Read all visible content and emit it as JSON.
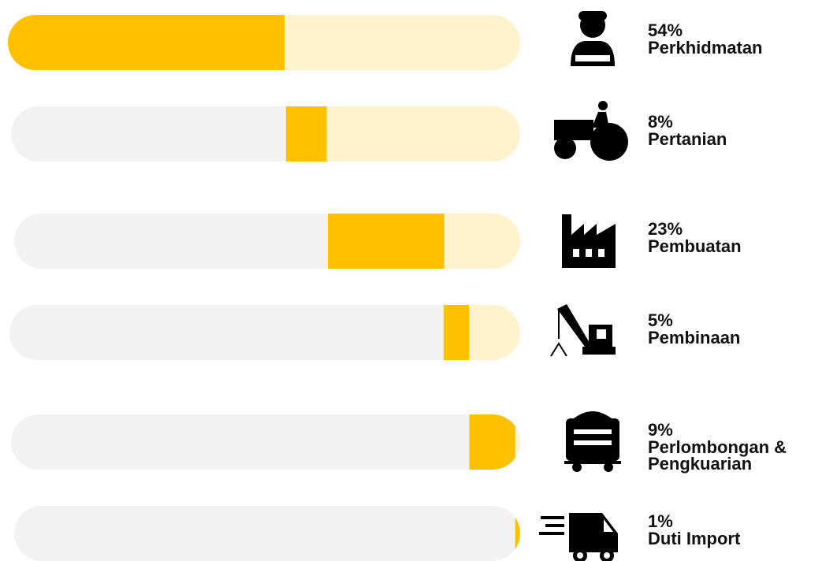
{
  "chart_data": {
    "type": "waterfall",
    "categories": [
      "Perkhidmatan",
      "Pertanian",
      "Pembuatan",
      "Pembinaan",
      "Perlombongan & Pengkuarian",
      "Duti Import"
    ],
    "values": [
      54,
      8,
      23,
      5,
      9,
      1
    ],
    "value_labels": [
      "54%",
      "8%",
      "23%",
      "5%",
      "9%",
      "1%"
    ],
    "color": "#FFC000",
    "track_before_color": "#F2F2F2",
    "track_after_color": "#FFF2CC"
  }
}
